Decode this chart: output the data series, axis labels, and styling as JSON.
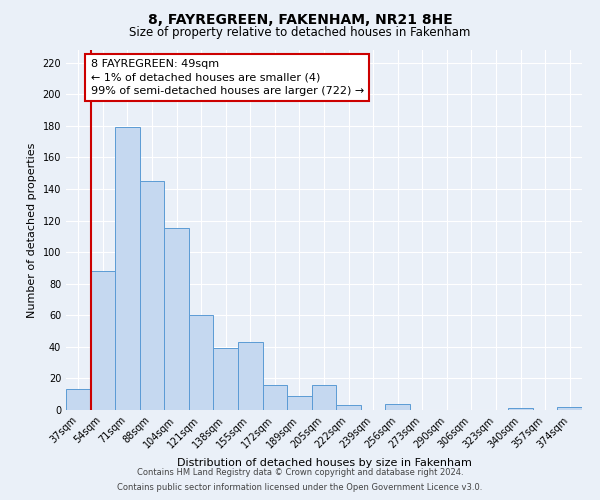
{
  "title": "8, FAYREGREEN, FAKENHAM, NR21 8HE",
  "subtitle": "Size of property relative to detached houses in Fakenham",
  "xlabel": "Distribution of detached houses by size in Fakenham",
  "ylabel": "Number of detached properties",
  "bar_labels": [
    "37sqm",
    "54sqm",
    "71sqm",
    "88sqm",
    "104sqm",
    "121sqm",
    "138sqm",
    "155sqm",
    "172sqm",
    "189sqm",
    "205sqm",
    "222sqm",
    "239sqm",
    "256sqm",
    "273sqm",
    "290sqm",
    "306sqm",
    "323sqm",
    "340sqm",
    "357sqm",
    "374sqm"
  ],
  "bar_values": [
    13,
    88,
    179,
    145,
    115,
    60,
    39,
    43,
    16,
    9,
    16,
    3,
    0,
    4,
    0,
    0,
    0,
    0,
    1,
    0,
    2
  ],
  "bar_color": "#c5d8f0",
  "bar_edgecolor": "#5b9bd5",
  "property_line_color": "#cc0000",
  "ylim": [
    0,
    228
  ],
  "yticks": [
    0,
    20,
    40,
    60,
    80,
    100,
    120,
    140,
    160,
    180,
    200,
    220
  ],
  "annotation_text": "8 FAYREGREEN: 49sqm\n← 1% of detached houses are smaller (4)\n99% of semi-detached houses are larger (722) →",
  "annotation_box_color": "#ffffff",
  "annotation_box_edgecolor": "#cc0000",
  "footer_line1": "Contains HM Land Registry data © Crown copyright and database right 2024.",
  "footer_line2": "Contains public sector information licensed under the Open Government Licence v3.0.",
  "background_color": "#eaf0f8",
  "grid_color": "#ffffff",
  "title_fontsize": 10,
  "subtitle_fontsize": 8.5,
  "xlabel_fontsize": 8,
  "ylabel_fontsize": 8,
  "tick_fontsize": 7,
  "annotation_fontsize": 8,
  "footer_fontsize": 6
}
